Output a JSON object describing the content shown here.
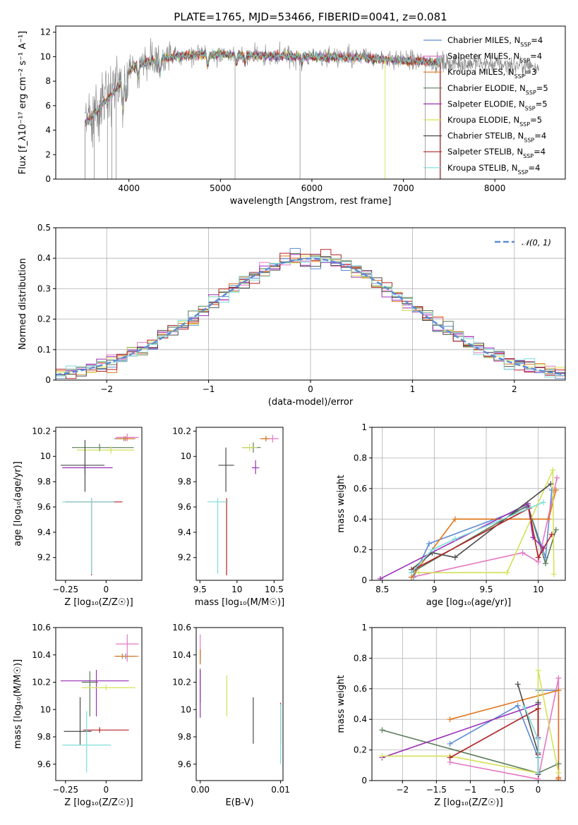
{
  "figure_title": "PLATE=1765, MJD=53466, FIBERID=0041, z=0.081",
  "colors": {
    "Chabrier MILES": "#5b8bd5",
    "Salpeter MILES": "#e377c2",
    "Kroupa MILES": "#e0761a",
    "Chabrier ELODIE": "#5a7d5a",
    "Salpeter ELODIE": "#9a2fb8",
    "Kroupa ELODIE": "#d4e157",
    "Chabrier STELIB": "#4a4a4a",
    "Salpeter STELIB": "#b22222",
    "Kroupa STELIB": "#7fdbdb",
    "data": "#808080",
    "normal": "#5b8bd5"
  },
  "chart_data": [
    {
      "id": "spectrum",
      "type": "line",
      "xlabel": "wavelength [Angstrom, rest frame]",
      "ylabel": "Flux [f_λ10⁻¹⁷ erg cm⁻² s⁻¹ A⁻¹]",
      "xlim": [
        3200,
        8770
      ],
      "ylim": [
        0,
        12.5
      ],
      "xticks": [
        4000,
        5000,
        6000,
        7000,
        8000
      ],
      "yticks": [
        0,
        2,
        4,
        6,
        8,
        10,
        12
      ],
      "legend_position": "right",
      "legend": [
        {
          "model": "Chabrier MILES",
          "nssp": "4"
        },
        {
          "model": "Salpeter MILES",
          "nssp": "4"
        },
        {
          "model": "Kroupa MILES",
          "nssp": "3"
        },
        {
          "model": "Chabrier ELODIE",
          "nssp": "5"
        },
        {
          "model": "Salpeter ELODIE",
          "nssp": "5"
        },
        {
          "model": "Kroupa ELODIE",
          "nssp": "5"
        },
        {
          "model": "Chabrier STELIB",
          "nssp": "4"
        },
        {
          "model": "Salpeter STELIB",
          "nssp": "4"
        },
        {
          "model": "Kroupa STELIB",
          "nssp": "4"
        }
      ],
      "continuum": {
        "x": [
          3520,
          3600,
          3700,
          3800,
          3900,
          4000,
          4100,
          4200,
          4400,
          4600,
          4800,
          5000,
          5200,
          5500,
          6000,
          6500,
          7000,
          7500,
          8000,
          8500
        ],
        "y": [
          4.5,
          5.2,
          6.0,
          6.8,
          7.8,
          8.8,
          9.4,
          9.6,
          9.9,
          10.1,
          10.2,
          10.2,
          10.1,
          10.1,
          10.0,
          9.9,
          9.7,
          9.5,
          9.4,
          9.2
        ]
      },
      "data_range": [
        3520,
        8480
      ],
      "models_range": [
        3520,
        7400
      ]
    },
    {
      "id": "residuals",
      "type": "step",
      "xlabel": "(data-model)/error",
      "ylabel": "Normed distribution",
      "xlim": [
        -2.5,
        2.5
      ],
      "ylim": [
        0,
        0.5
      ],
      "xticks": [
        -2,
        -1,
        0,
        1,
        2
      ],
      "yticks": [
        0,
        0.1,
        0.2,
        0.3,
        0.4,
        0.5
      ],
      "legend": "𝒩(0, 1)",
      "legend_position": "top-right",
      "bin_width": 0.1
    },
    {
      "id": "age_vs_Z",
      "type": "scatter",
      "xlabel": "Z [log₁₀(Z/Z☉)]",
      "ylabel": "age  [log₁₀(age/yr)]",
      "xlim": [
        -0.31,
        0.22
      ],
      "ylim": [
        9.02,
        10.23
      ],
      "xticks": [
        -0.25,
        0.0
      ],
      "yticks": [
        9.2,
        9.4,
        9.6,
        9.8,
        10.0,
        10.2
      ],
      "points": [
        {
          "model": "Chabrier MILES",
          "x": 0.11,
          "xerr": [
            0.06,
            0.06
          ],
          "y": 10.14,
          "yerr": [
            0.02,
            0.02
          ]
        },
        {
          "model": "Salpeter MILES",
          "x": 0.13,
          "xerr": [
            0.07,
            0.07
          ],
          "y": 10.15,
          "yerr": [
            0.03,
            0.03
          ]
        },
        {
          "model": "Kroupa MILES",
          "x": 0.12,
          "xerr": [
            0.06,
            0.06
          ],
          "y": 10.14,
          "yerr": [
            0.02,
            0.02
          ]
        },
        {
          "model": "Chabrier ELODIE",
          "x": -0.04,
          "xerr": [
            0.17,
            0.21
          ],
          "y": 10.07,
          "yerr": [
            0.03,
            0.03
          ]
        },
        {
          "model": "Salpeter ELODIE",
          "x": -0.13,
          "xerr": [
            0.14,
            0.17
          ],
          "y": 9.91,
          "yerr": [
            0.05,
            0.05
          ]
        },
        {
          "model": "Kroupa ELODIE",
          "x": 0.03,
          "xerr": [
            0.21,
            0.14
          ],
          "y": 10.05,
          "yerr": [
            0.03,
            0.03
          ]
        },
        {
          "model": "Chabrier STELIB",
          "x": -0.13,
          "xerr": [
            0.15,
            0.12
          ],
          "y": 9.93,
          "yerr": [
            0.21,
            0.2
          ]
        },
        {
          "model": "Salpeter STELIB",
          "x": -0.09,
          "xerr": [
            0.16,
            0.19
          ],
          "y": 9.64,
          "yerr": [
            0.58,
            0.03
          ]
        },
        {
          "model": "Kroupa STELIB",
          "x": -0.09,
          "xerr": [
            0.18,
            0.14
          ],
          "y": 9.64,
          "yerr": [
            0.57,
            0.03
          ]
        }
      ]
    },
    {
      "id": "age_vs_mass",
      "type": "scatter",
      "xlabel": "mass [log₁₀(M/M☉)]",
      "ylabel": "",
      "xlim": [
        9.45,
        10.62
      ],
      "ylim": [
        9.02,
        10.23
      ],
      "xticks": [
        9.5,
        10.0,
        10.5
      ],
      "yticks": [
        9.2,
        9.4,
        9.6,
        9.8,
        10.0,
        10.2
      ],
      "points": [
        {
          "model": "Chabrier MILES",
          "x": 10.39,
          "xerr": [
            0.05,
            0.05
          ],
          "y": 10.14,
          "yerr": [
            0.02,
            0.02
          ]
        },
        {
          "model": "Salpeter MILES",
          "x": 10.48,
          "xerr": [
            0.1,
            0.08
          ],
          "y": 10.14,
          "yerr": [
            0.03,
            0.03
          ]
        },
        {
          "model": "Kroupa MILES",
          "x": 10.39,
          "xerr": [
            0.08,
            0.05
          ],
          "y": 10.14,
          "yerr": [
            0.02,
            0.02
          ]
        },
        {
          "model": "Chabrier ELODIE",
          "x": 10.22,
          "xerr": [
            0.15,
            0.1
          ],
          "y": 10.07,
          "yerr": [
            0.04,
            0.04
          ]
        },
        {
          "model": "Salpeter ELODIE",
          "x": 10.25,
          "xerr": [
            0.05,
            0.05
          ],
          "y": 9.91,
          "yerr": [
            0.05,
            0.06
          ]
        },
        {
          "model": "Kroupa ELODIE",
          "x": 10.17,
          "xerr": [
            0.1,
            0.1
          ],
          "y": 10.07,
          "yerr": [
            0.03,
            0.03
          ]
        },
        {
          "model": "Chabrier STELIB",
          "x": 9.85,
          "xerr": [
            0.1,
            0.11
          ],
          "y": 9.93,
          "yerr": [
            0.21,
            0.14
          ]
        },
        {
          "model": "Salpeter STELIB",
          "x": 9.86,
          "xerr": [
            0.01,
            0.01
          ],
          "y": 9.64,
          "yerr": [
            0.58,
            0.03
          ]
        },
        {
          "model": "Kroupa STELIB",
          "x": 9.74,
          "xerr": [
            0.14,
            0.14
          ],
          "y": 9.64,
          "yerr": [
            0.57,
            0.03
          ]
        }
      ]
    },
    {
      "id": "mass_weight_vs_age",
      "type": "line",
      "xlabel": "age  [log₁₀(age/yr)]",
      "ylabel": "mass weight",
      "xlim": [
        8.4,
        10.26
      ],
      "ylim": [
        0,
        1
      ],
      "xticks": [
        8.5,
        9.0,
        9.5,
        10.0
      ],
      "yticks": [
        0,
        0.2,
        0.4,
        0.6,
        0.8,
        1.0
      ],
      "series": [
        {
          "model": "Chabrier MILES",
          "x": [
            8.8,
            8.95,
            9.9,
            10.07,
            10.13
          ],
          "y": [
            0.02,
            0.24,
            0.48,
            0.15,
            0.59
          ]
        },
        {
          "model": "Salpeter MILES",
          "x": [
            8.78,
            9.85,
            10.0,
            10.18
          ],
          "y": [
            0.02,
            0.18,
            0.12,
            0.67
          ]
        },
        {
          "model": "Kroupa MILES",
          "x": [
            8.78,
            9.2,
            10.1,
            10.17
          ],
          "y": [
            0.02,
            0.4,
            0.4,
            0.59
          ]
        },
        {
          "model": "Chabrier ELODIE",
          "x": [
            8.78,
            9.9,
            10.07,
            10.17
          ],
          "y": [
            0.05,
            0.49,
            0.11,
            0.33
          ]
        },
        {
          "model": "Salpeter ELODIE",
          "x": [
            8.48,
            9.9,
            9.95,
            10.05
          ],
          "y": [
            0.01,
            0.5,
            0.28,
            0.21
          ]
        },
        {
          "model": "Kroupa ELODIE",
          "x": [
            8.85,
            9.7,
            10.14,
            10.15
          ],
          "y": [
            0.05,
            0.05,
            0.72,
            0.04
          ]
        },
        {
          "model": "Chabrier STELIB",
          "x": [
            8.78,
            8.98,
            9.2,
            10.12
          ],
          "y": [
            0.07,
            0.18,
            0.15,
            0.63
          ]
        },
        {
          "model": "Salpeter STELIB",
          "x": [
            8.8,
            9.91,
            10.0,
            10.13
          ],
          "y": [
            0.07,
            0.47,
            0.15,
            0.3
          ]
        },
        {
          "model": "Kroupa STELIB",
          "x": [
            8.78,
            8.98,
            9.2,
            10.05
          ],
          "y": [
            0.05,
            0.2,
            0.27,
            0.51
          ]
        }
      ]
    },
    {
      "id": "mass_vs_Z",
      "type": "scatter",
      "xlabel": "Z [log₁₀(Z/Z☉)]",
      "ylabel": "mass [log₁₀(M/M☉)]",
      "xlim": [
        -0.31,
        0.22
      ],
      "ylim": [
        9.48,
        10.6
      ],
      "xticks": [
        -0.25,
        0.0
      ],
      "yticks": [
        9.6,
        9.8,
        10.0,
        10.2,
        10.4,
        10.6
      ],
      "points": [
        {
          "model": "Chabrier MILES",
          "x": 0.12,
          "xerr": [
            0.06,
            0.06
          ],
          "y": 10.39,
          "yerr": [
            0.02,
            0.02
          ]
        },
        {
          "model": "Salpeter MILES",
          "x": 0.13,
          "xerr": [
            0.07,
            0.07
          ],
          "y": 10.48,
          "yerr": [
            0.13,
            0.07
          ]
        },
        {
          "model": "Kroupa MILES",
          "x": 0.1,
          "xerr": [
            0.05,
            0.1
          ],
          "y": 10.39,
          "yerr": [
            0.02,
            0.02
          ]
        },
        {
          "model": "Chabrier ELODIE",
          "x": -0.1,
          "xerr": [
            0.05,
            0.05
          ],
          "y": 10.2,
          "yerr": [
            0.25,
            0.08
          ]
        },
        {
          "model": "Salpeter ELODIE",
          "x": -0.06,
          "xerr": [
            0.22,
            0.2
          ],
          "y": 10.21,
          "yerr": [
            0.26,
            0.08
          ]
        },
        {
          "model": "Kroupa ELODIE",
          "x": 0.0,
          "xerr": [
            0.15,
            0.18
          ],
          "y": 10.16,
          "yerr": [
            0.02,
            0.02
          ]
        },
        {
          "model": "Chabrier STELIB",
          "x": -0.16,
          "xerr": [
            0.1,
            0.07
          ],
          "y": 9.84,
          "yerr": [
            0.1,
            0.25
          ]
        },
        {
          "model": "Salpeter STELIB",
          "x": -0.04,
          "xerr": [
            0.1,
            0.18
          ],
          "y": 9.85,
          "yerr": [
            0.02,
            0.02
          ]
        },
        {
          "model": "Kroupa STELIB",
          "x": -0.12,
          "xerr": [
            0.15,
            0.15
          ],
          "y": 9.74,
          "yerr": [
            0.2,
            0.25
          ]
        }
      ]
    },
    {
      "id": "mass_vs_ebv",
      "type": "scatter",
      "xlabel": "E(B-V)",
      "ylabel": "",
      "xlim": [
        -0.0005,
        0.0103
      ],
      "ylim": [
        9.48,
        10.6
      ],
      "xticks": [
        0.0,
        0.01
      ],
      "xticklabels": [
        "0.00",
        "0.01"
      ],
      "yticks": [
        9.6,
        9.8,
        10.0,
        10.2,
        10.4,
        10.6
      ],
      "points": [
        {
          "model": "Chabrier MILES",
          "x": 0.0,
          "y": 10.39,
          "yerr": [
            0.05,
            0.05
          ]
        },
        {
          "model": "Salpeter MILES",
          "x": 0.0,
          "y": 10.48,
          "yerr": [
            0.1,
            0.07
          ]
        },
        {
          "model": "Kroupa MILES",
          "x": 0.0,
          "y": 10.39,
          "yerr": [
            0.06,
            0.05
          ]
        },
        {
          "model": "Chabrier ELODIE",
          "x": 0.0,
          "y": 10.2,
          "yerr": [
            0.15,
            0.1
          ]
        },
        {
          "model": "Salpeter ELODIE",
          "x": 0.0,
          "y": 10.21,
          "yerr": [
            0.27,
            0.08
          ]
        },
        {
          "model": "Kroupa ELODIE",
          "x": 0.0033,
          "y": 10.1,
          "yerr": [
            0.15,
            0.15
          ]
        },
        {
          "model": "Chabrier STELIB",
          "x": 0.0066,
          "y": 9.92,
          "yerr": [
            0.17,
            0.17
          ]
        },
        {
          "model": "Salpeter STELIB",
          "x": 0.01,
          "y": 9.85,
          "yerr": [
            0.1,
            0.2
          ]
        },
        {
          "model": "Kroupa STELIB",
          "x": 0.01,
          "y": 9.74,
          "yerr": [
            0.14,
            0.3
          ]
        }
      ]
    },
    {
      "id": "mass_weight_vs_Z",
      "type": "line",
      "xlabel": "Z [log₁₀(Z/Z☉)]",
      "ylabel": "mass weight",
      "xlim": [
        -2.45,
        0.4
      ],
      "ylim": [
        0,
        1
      ],
      "xticks": [
        -2.0,
        -1.5,
        -1.0,
        -0.5,
        0.0
      ],
      "yticks": [
        0,
        0.2,
        0.4,
        0.6,
        0.8,
        1.0
      ],
      "series": [
        {
          "model": "Chabrier MILES",
          "x": [
            -1.3,
            -0.3,
            0.0,
            0.0,
            0.3
          ],
          "y": [
            0.24,
            0.49,
            0.15,
            0.59,
            0.59
          ]
        },
        {
          "model": "Salpeter MILES",
          "x": [
            -1.3,
            0.0,
            0.3,
            0.3
          ],
          "y": [
            0.12,
            0.01,
            0.67,
            0.01
          ]
        },
        {
          "model": "Kroupa MILES",
          "x": [
            -1.3,
            0.3,
            0.3,
            0.3
          ],
          "y": [
            0.4,
            0.59,
            0.02,
            0.01
          ]
        },
        {
          "model": "Chabrier ELODIE",
          "x": [
            -2.3,
            0.0,
            0.3
          ],
          "y": [
            0.33,
            0.05,
            0.11
          ]
        },
        {
          "model": "Salpeter ELODIE",
          "x": [
            -2.3,
            0.0,
            0.0
          ],
          "y": [
            0.15,
            0.5,
            0.28
          ]
        },
        {
          "model": "Kroupa ELODIE",
          "x": [
            -2.3,
            -1.3,
            0.0,
            0.0,
            0.3
          ],
          "y": [
            0.16,
            0.16,
            0.05,
            0.72,
            0.05
          ]
        },
        {
          "model": "Chabrier STELIB",
          "x": [
            -0.3,
            0.0,
            0.0,
            0.0
          ],
          "y": [
            0.63,
            0.18,
            0.04,
            0.51
          ]
        },
        {
          "model": "Salpeter STELIB",
          "x": [
            -1.3,
            0.0,
            0.0
          ],
          "y": [
            0.15,
            0.47,
            0.17
          ]
        },
        {
          "model": "Kroupa STELIB",
          "x": [
            -0.2,
            0.0,
            0.0
          ],
          "y": [
            0.48,
            0.27,
            0.05
          ]
        }
      ]
    }
  ]
}
